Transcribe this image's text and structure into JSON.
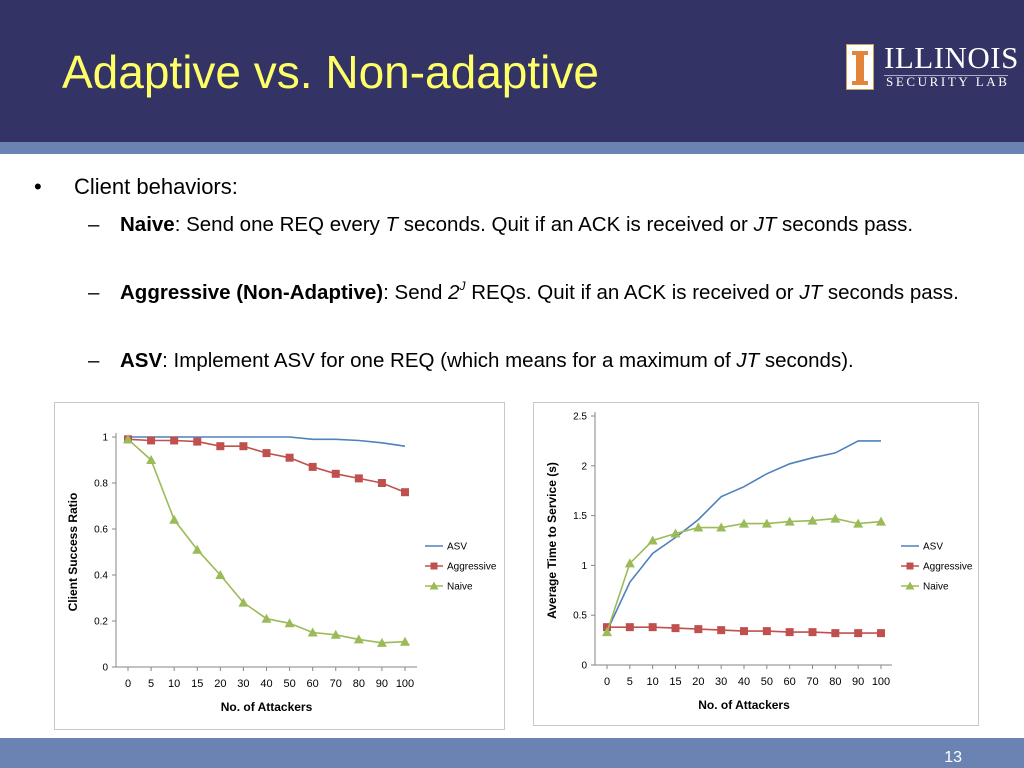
{
  "slide": {
    "title": "Adaptive vs. Non-adaptive",
    "page_number": "13",
    "logo": {
      "word": "ILLINOIS",
      "sub": "SECURITY LAB"
    },
    "bullet": {
      "marker": "•",
      "text": "Client behaviors:"
    },
    "subbullets": {
      "dash": "–",
      "naive": {
        "label": "Naive",
        "t1": ": Send one REQ every ",
        "v1": "T",
        "t2": " seconds. Quit if an ACK is received or ",
        "v2": "JT",
        "t3": " seconds pass."
      },
      "aggressive": {
        "label": "Aggressive (Non-Adaptive)",
        "t1": ": Send ",
        "v1": "2",
        "sup": "J",
        "t2": " REQs. Quit if an ACK is received or ",
        "v2": "JT",
        "t3": " seconds pass."
      },
      "asv": {
        "label": "ASV",
        "t1": ": Implement ASV for one REQ (which means for a maximum of ",
        "v1": "JT",
        "t2": " seconds)."
      }
    }
  },
  "colors": {
    "asv": "#4f81bd",
    "aggressive": "#c0504d",
    "naive": "#9bbb59",
    "header": "#333366",
    "stripe": "#6b83b3",
    "title": "#ffff66"
  },
  "chart_data": [
    {
      "type": "line",
      "xlabel": "No. of Attackers",
      "ylabel": "Client Success Ratio",
      "x": [
        "0",
        "5",
        "10",
        "15",
        "20",
        "30",
        "40",
        "50",
        "60",
        "70",
        "80",
        "90",
        "100"
      ],
      "ylim": [
        0,
        1
      ],
      "yticks": [
        "0",
        "0.2",
        "0.4",
        "0.6",
        "0.8",
        "1"
      ],
      "legend_position": "right",
      "series": [
        {
          "name": "ASV",
          "marker": "none",
          "values": [
            1.0,
            1.0,
            1.0,
            1.0,
            1.0,
            1.0,
            1.0,
            1.0,
            0.99,
            0.99,
            0.985,
            0.975,
            0.96
          ]
        },
        {
          "name": "Aggressive",
          "marker": "square",
          "values": [
            0.99,
            0.985,
            0.985,
            0.98,
            0.96,
            0.96,
            0.93,
            0.91,
            0.87,
            0.84,
            0.82,
            0.8,
            0.76
          ]
        },
        {
          "name": "Naive",
          "marker": "triangle",
          "values": [
            0.99,
            0.9,
            0.64,
            0.51,
            0.4,
            0.28,
            0.21,
            0.19,
            0.15,
            0.14,
            0.12,
            0.105,
            0.11
          ]
        }
      ]
    },
    {
      "type": "line",
      "xlabel": "No. of Attackers",
      "ylabel": "Average Time to Service (s)",
      "x": [
        "0",
        "5",
        "10",
        "15",
        "20",
        "30",
        "40",
        "50",
        "60",
        "70",
        "80",
        "90",
        "100"
      ],
      "ylim": [
        0,
        2.5
      ],
      "yticks": [
        "0",
        "0.5",
        "1",
        "1.5",
        "2",
        "2.5"
      ],
      "legend_position": "right",
      "series": [
        {
          "name": "ASV",
          "marker": "none",
          "values": [
            0.34,
            0.83,
            1.12,
            1.28,
            1.46,
            1.69,
            1.79,
            1.92,
            2.02,
            2.08,
            2.13,
            2.25,
            2.25
          ]
        },
        {
          "name": "Aggressive",
          "marker": "square",
          "values": [
            0.38,
            0.38,
            0.38,
            0.37,
            0.36,
            0.35,
            0.34,
            0.34,
            0.33,
            0.33,
            0.32,
            0.32,
            0.32
          ]
        },
        {
          "name": "Naive",
          "marker": "triangle",
          "values": [
            0.33,
            1.02,
            1.25,
            1.32,
            1.38,
            1.38,
            1.42,
            1.42,
            1.44,
            1.45,
            1.47,
            1.42,
            1.44
          ]
        }
      ]
    }
  ]
}
